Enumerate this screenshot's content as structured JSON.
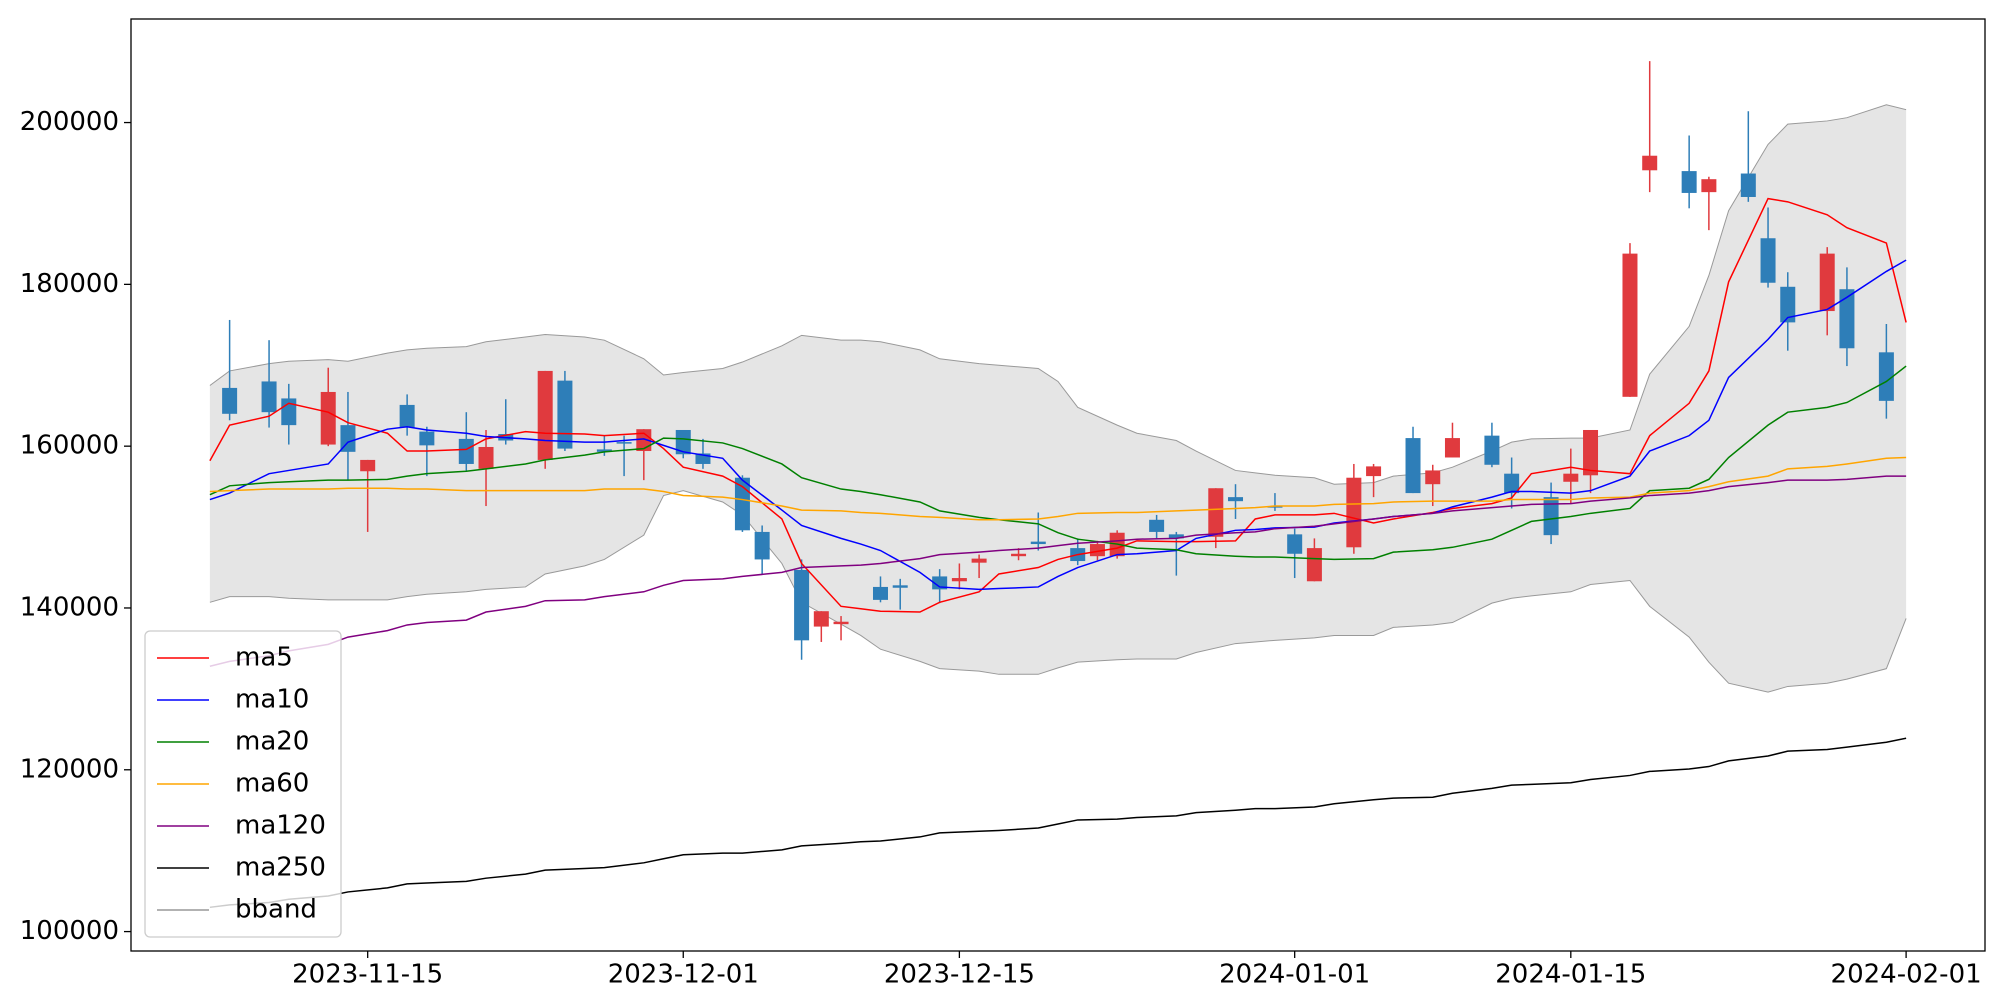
{
  "chart_data": {
    "type": "candlestick",
    "x": [
      "2023-11-08",
      "2023-11-10",
      "2023-11-11",
      "2023-11-13",
      "2023-11-14",
      "2023-11-15",
      "2023-11-17",
      "2023-11-18",
      "2023-11-20",
      "2023-11-21",
      "2023-11-22",
      "2023-11-24",
      "2023-11-25",
      "2023-11-27",
      "2023-11-28",
      "2023-11-29",
      "2023-12-01",
      "2023-12-02",
      "2023-12-04",
      "2023-12-05",
      "2023-12-07",
      "2023-12-08",
      "2023-12-09",
      "2023-12-11",
      "2023-12-12",
      "2023-12-14",
      "2023-12-15",
      "2023-12-16",
      "2023-12-18",
      "2023-12-19",
      "2023-12-21",
      "2023-12-22",
      "2023-12-23",
      "2023-12-25",
      "2023-12-26",
      "2023-12-28",
      "2023-12-29",
      "2023-12-31",
      "2024-01-01",
      "2024-01-02",
      "2024-01-04",
      "2024-01-05",
      "2024-01-07",
      "2024-01-08",
      "2024-01-09",
      "2024-01-11",
      "2024-01-12",
      "2024-01-14",
      "2024-01-15",
      "2024-01-16",
      "2024-01-18",
      "2024-01-19",
      "2024-01-21",
      "2024-01-22",
      "2024-01-24",
      "2024-01-25",
      "2024-01-26",
      "2024-01-28",
      "2024-01-29",
      "2024-01-31"
    ],
    "open": [
      167200,
      168000,
      165900,
      160200,
      162600,
      156900,
      165100,
      161800,
      160900,
      157200,
      161500,
      158300,
      168100,
      159600,
      160500,
      159400,
      162000,
      159100,
      156100,
      149400,
      144700,
      137700,
      138000,
      142600,
      142800,
      143900,
      143300,
      145600,
      146400,
      148200,
      147400,
      146400,
      146400,
      150900,
      149100,
      148800,
      153700,
      152600,
      149100,
      143300,
      147500,
      156300,
      161000,
      155300,
      158600,
      161300,
      156600,
      153700,
      155600,
      156400,
      166100,
      194100,
      194000,
      191400,
      193700,
      185700,
      179700,
      176700,
      179400,
      171600
    ],
    "high": [
      175600,
      173100,
      167700,
      169700,
      166700,
      158300,
      166400,
      162400,
      164200,
      162000,
      165800,
      169300,
      169300,
      161300,
      161300,
      162100,
      162000,
      160900,
      156400,
      150200,
      146000,
      139600,
      139000,
      143900,
      143600,
      144800,
      145500,
      146600,
      147400,
      151800,
      148600,
      148300,
      149600,
      151500,
      149400,
      154800,
      155300,
      154200,
      149800,
      148600,
      157800,
      157800,
      162400,
      157700,
      162900,
      162900,
      158600,
      155500,
      159700,
      162000,
      185100,
      207600,
      198400,
      193300,
      201400,
      189500,
      181500,
      184600,
      182100,
      175100
    ],
    "low": [
      163200,
      162300,
      160200,
      160000,
      155800,
      149400,
      161300,
      156300,
      156900,
      152600,
      160200,
      157200,
      159400,
      158800,
      156300,
      155800,
      158500,
      157200,
      149400,
      144200,
      133600,
      135800,
      136000,
      140700,
      139800,
      140600,
      142300,
      143700,
      145900,
      147100,
      145300,
      145900,
      146100,
      148600,
      144000,
      147400,
      151000,
      152000,
      143700,
      143300,
      146700,
      153700,
      154200,
      152600,
      158600,
      157400,
      152300,
      147900,
      152900,
      154200,
      166100,
      191400,
      189400,
      186700,
      190200,
      179600,
      171800,
      173700,
      169900,
      163400
    ],
    "close": [
      164000,
      164200,
      162600,
      166700,
      159300,
      158300,
      162300,
      160100,
      157800,
      159900,
      160700,
      169300,
      159700,
      159300,
      160400,
      162100,
      159000,
      157800,
      149600,
      146000,
      136000,
      139600,
      138300,
      141000,
      142500,
      142300,
      143700,
      146100,
      146700,
      147900,
      145800,
      147900,
      149300,
      149400,
      148600,
      154800,
      153200,
      152400,
      146700,
      147400,
      156100,
      157500,
      154200,
      157000,
      161000,
      157700,
      154200,
      149000,
      156600,
      162000,
      183800,
      195900,
      191300,
      193000,
      190800,
      180200,
      175300,
      183800,
      172100,
      165600
    ],
    "up_color": "#e03a3e",
    "down_color": "#2e7eb8",
    "xlim": [
      "2023-11-03",
      "2024-02-05"
    ],
    "xticks": [
      "2023-11-15",
      "2023-12-01",
      "2023-12-15",
      "2024-01-01",
      "2024-01-15",
      "2024-02-01"
    ],
    "ylim": [
      97600,
      212800
    ],
    "yticks": [
      100000,
      120000,
      140000,
      160000,
      180000,
      200000
    ],
    "legend": "lower left",
    "overlays": {
      "x": [
        "2023-11-07",
        "2023-11-08",
        "2023-11-10",
        "2023-11-11",
        "2023-11-13",
        "2023-11-14",
        "2023-11-16",
        "2023-11-17",
        "2023-11-18",
        "2023-11-20",
        "2023-11-21",
        "2023-11-23",
        "2023-11-24",
        "2023-11-26",
        "2023-11-27",
        "2023-11-29",
        "2023-11-30",
        "2023-12-01",
        "2023-12-03",
        "2023-12-04",
        "2023-12-06",
        "2023-12-07",
        "2023-12-09",
        "2023-12-10",
        "2023-12-11",
        "2023-12-13",
        "2023-12-14",
        "2023-12-16",
        "2023-12-17",
        "2023-12-19",
        "2023-12-20",
        "2023-12-21",
        "2023-12-23",
        "2023-12-24",
        "2023-12-26",
        "2023-12-27",
        "2023-12-29",
        "2023-12-30",
        "2023-12-31",
        "2024-01-02",
        "2024-01-03",
        "2024-01-05",
        "2024-01-06",
        "2024-01-08",
        "2024-01-09",
        "2024-01-11",
        "2024-01-12",
        "2024-01-13",
        "2024-01-15",
        "2024-01-16",
        "2024-01-18",
        "2024-01-19",
        "2024-01-21",
        "2024-01-22",
        "2024-01-23",
        "2024-01-25",
        "2024-01-26",
        "2024-01-28",
        "2024-01-29",
        "2024-01-31",
        "2024-02-01"
      ],
      "series": [
        {
          "name": "ma5",
          "color": "#ff0000",
          "values": [
            158200,
            162600,
            163700,
            165300,
            164200,
            162900,
            161600,
            159400,
            159400,
            159600,
            160900,
            161800,
            161600,
            161500,
            161300,
            161600,
            159700,
            157400,
            156300,
            155000,
            151000,
            145500,
            140200,
            139900,
            139600,
            139500,
            140700,
            142000,
            144200,
            145000,
            146000,
            146600,
            147400,
            148300,
            148200,
            148200,
            148300,
            151000,
            151500,
            151500,
            151700,
            150500,
            151000,
            151800,
            152300,
            152900,
            153600,
            156600,
            157400,
            157000,
            156600,
            161300,
            165300,
            169300,
            180300,
            190600,
            190200,
            188600,
            187000,
            185100,
            175300
          ]
        },
        {
          "name": "ma10",
          "color": "#0000ff",
          "values": [
            153400,
            154200,
            156600,
            157000,
            157800,
            160500,
            162100,
            162400,
            162000,
            161600,
            161200,
            160900,
            160700,
            160500,
            160500,
            160900,
            160100,
            159300,
            158500,
            155800,
            152100,
            150200,
            148600,
            147900,
            147100,
            144400,
            142600,
            142300,
            142400,
            142600,
            143900,
            145000,
            146600,
            146700,
            147100,
            148600,
            149600,
            149700,
            149900,
            150000,
            150500,
            151000,
            151300,
            151700,
            152500,
            153700,
            154400,
            154400,
            154200,
            154500,
            156300,
            159400,
            161300,
            163200,
            168500,
            173200,
            175900,
            176900,
            178400,
            181600,
            183000
          ]
        },
        {
          "name": "ma20",
          "color": "#008000",
          "values": [
            154000,
            155100,
            155500,
            155600,
            155800,
            155800,
            155900,
            156300,
            156600,
            156900,
            157200,
            157800,
            158300,
            158900,
            159300,
            159700,
            161000,
            160900,
            160400,
            159700,
            157800,
            156100,
            154700,
            154400,
            154000,
            153100,
            152000,
            151200,
            150900,
            150400,
            149300,
            148500,
            147900,
            147400,
            147200,
            146700,
            146400,
            146300,
            146300,
            146100,
            146000,
            146100,
            146900,
            147200,
            147500,
            148500,
            149600,
            150700,
            151300,
            151700,
            152300,
            154500,
            154800,
            155900,
            158600,
            162600,
            164200,
            164800,
            165400,
            168000,
            169900
          ]
        },
        {
          "name": "ma60",
          "color": "#ffa500",
          "values": [
            154400,
            154500,
            154700,
            154700,
            154700,
            154800,
            154800,
            154700,
            154700,
            154500,
            154500,
            154500,
            154500,
            154500,
            154700,
            154700,
            154400,
            153900,
            153700,
            153400,
            152600,
            152100,
            152000,
            151800,
            151700,
            151300,
            151200,
            150900,
            150900,
            151000,
            151300,
            151700,
            151800,
            151800,
            152000,
            152100,
            152300,
            152400,
            152600,
            152600,
            152800,
            152900,
            153100,
            153200,
            153200,
            153200,
            153400,
            153400,
            153400,
            153600,
            153700,
            154200,
            154500,
            155000,
            155600,
            156300,
            157200,
            157500,
            157800,
            158500,
            158600
          ]
        },
        {
          "name": "ma120",
          "color": "#800080",
          "values": [
            132800,
            133400,
            134100,
            134700,
            135500,
            136400,
            137200,
            137900,
            138200,
            138500,
            139500,
            140200,
            140900,
            141000,
            141400,
            142000,
            142800,
            143400,
            143600,
            143900,
            144400,
            145000,
            145200,
            145300,
            145500,
            146100,
            146600,
            146900,
            147100,
            147400,
            147700,
            148000,
            148300,
            148500,
            148600,
            149000,
            149300,
            149400,
            149800,
            150100,
            150400,
            151000,
            151300,
            151700,
            152000,
            152400,
            152600,
            152800,
            152900,
            153200,
            153600,
            153900,
            154200,
            154500,
            155000,
            155500,
            155800,
            155800,
            155900,
            156300,
            156300
          ]
        },
        {
          "name": "ma250",
          "color": "#000000",
          "values": [
            103000,
            103300,
            103600,
            104000,
            104400,
            104900,
            105400,
            105900,
            106000,
            106200,
            106600,
            107100,
            107600,
            107800,
            107900,
            108500,
            109000,
            109500,
            109700,
            109700,
            110100,
            110600,
            110900,
            111100,
            111200,
            111700,
            112200,
            112400,
            112500,
            112800,
            113300,
            113800,
            113900,
            114100,
            114300,
            114700,
            115000,
            115200,
            115200,
            115400,
            115800,
            116300,
            116500,
            116600,
            117100,
            117700,
            118100,
            118200,
            118400,
            118800,
            119300,
            119800,
            120100,
            120400,
            121100,
            121700,
            122300,
            122500,
            122800,
            123400,
            123900
          ]
        }
      ],
      "band": {
        "name": "bband",
        "color": "#999999",
        "fill": "#e5e5e5",
        "upper": [
          167500,
          169300,
          170200,
          170500,
          170700,
          170500,
          171500,
          171900,
          172100,
          172300,
          172900,
          173500,
          173800,
          173500,
          173100,
          170800,
          168800,
          169100,
          169600,
          170400,
          172400,
          173700,
          173100,
          173100,
          172900,
          171900,
          170800,
          170200,
          170000,
          169600,
          168000,
          164800,
          162600,
          161600,
          160700,
          159400,
          157000,
          156700,
          156400,
          156100,
          155300,
          155500,
          156300,
          156700,
          157400,
          159400,
          160500,
          160900,
          161000,
          161000,
          162000,
          168900,
          174800,
          181100,
          189100,
          197300,
          199800,
          200200,
          200600,
          202200,
          201600
        ],
        "lower": [
          140700,
          141400,
          141400,
          141200,
          141000,
          141000,
          141000,
          141400,
          141700,
          142000,
          142300,
          142600,
          144200,
          145200,
          146000,
          149000,
          153900,
          154500,
          153100,
          151500,
          145500,
          140700,
          138000,
          136600,
          134900,
          133400,
          132500,
          132200,
          131800,
          131800,
          132600,
          133300,
          133600,
          133700,
          133700,
          134500,
          135600,
          135800,
          136000,
          136300,
          136600,
          136600,
          137600,
          137900,
          138200,
          140600,
          141200,
          141500,
          142000,
          142900,
          143400,
          140200,
          136400,
          133300,
          130700,
          129600,
          130300,
          130700,
          131200,
          132500,
          138700
        ]
      }
    }
  }
}
